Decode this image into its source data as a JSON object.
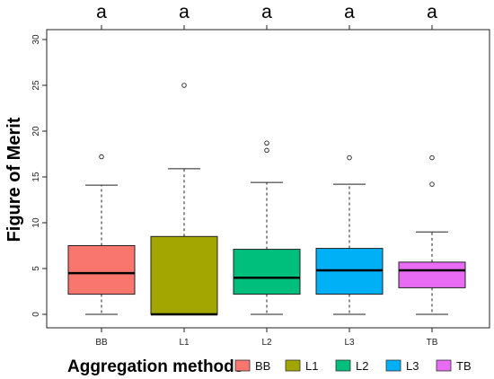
{
  "chart_data": {
    "type": "box",
    "ylabel": "Figure of Merit",
    "ylim": [
      0,
      30
    ],
    "yticks": [
      0,
      5,
      10,
      15,
      20,
      25,
      30
    ],
    "grid": false,
    "categories": [
      "BB",
      "L1",
      "L2",
      "L3",
      "TB"
    ],
    "significance_letters": [
      "a",
      "a",
      "a",
      "a",
      "a"
    ],
    "boxes": [
      {
        "category": "BB",
        "min": 0,
        "q1": 2.2,
        "median": 4.5,
        "q3": 7.5,
        "max": 14.1,
        "outliers": [
          17.2
        ],
        "color": "#F8766D"
      },
      {
        "category": "L1",
        "min": 0,
        "q1": 0,
        "median": 0,
        "q3": 8.5,
        "max": 15.9,
        "outliers": [
          25.0
        ],
        "color": "#A3A500"
      },
      {
        "category": "L2",
        "min": 0,
        "q1": 2.2,
        "median": 4.0,
        "q3": 7.1,
        "max": 14.4,
        "outliers": [
          17.9,
          18.7
        ],
        "color": "#00BF7D"
      },
      {
        "category": "L3",
        "min": 0,
        "q1": 2.2,
        "median": 4.8,
        "q3": 7.2,
        "max": 14.2,
        "outliers": [
          17.1
        ],
        "color": "#00B0F6"
      },
      {
        "category": "TB",
        "min": 0,
        "q1": 2.9,
        "median": 4.8,
        "q3": 5.7,
        "max": 9.0,
        "outliers": [
          14.2,
          17.1
        ],
        "color": "#E76BF3"
      }
    ],
    "legend": {
      "title": "Aggregation methods",
      "position": "bottom",
      "items": [
        {
          "label": "BB",
          "color": "#F8766D"
        },
        {
          "label": "L1",
          "color": "#A3A500"
        },
        {
          "label": "L2",
          "color": "#00BF7D"
        },
        {
          "label": "L3",
          "color": "#00B0F6"
        },
        {
          "label": "TB",
          "color": "#E76BF3"
        }
      ]
    }
  }
}
